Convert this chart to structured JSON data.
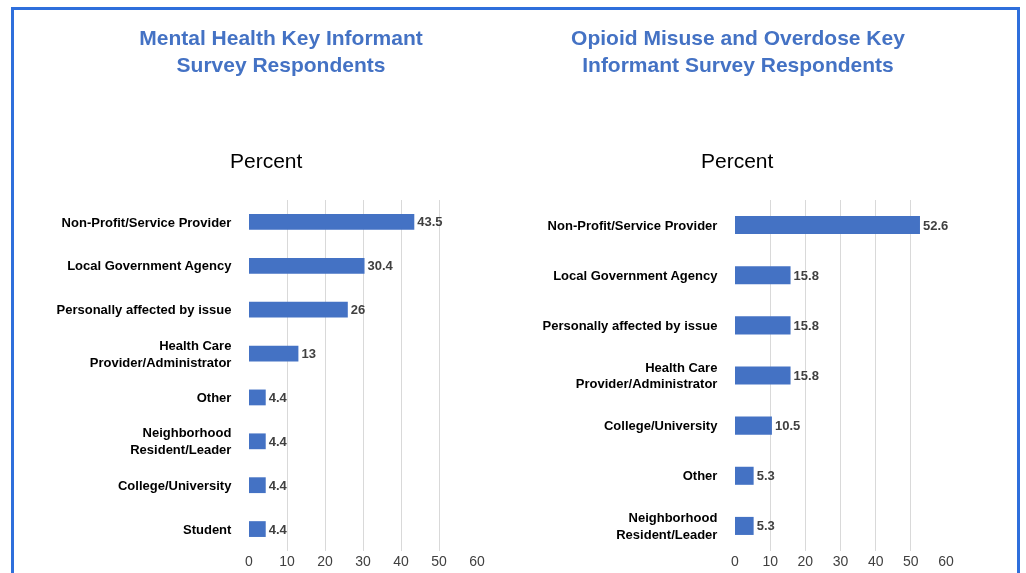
{
  "chart_data": [
    {
      "type": "bar",
      "orientation": "horizontal",
      "title": "Mental Health Key Informant Survey Respondents",
      "subtitle": "Percent",
      "categories": [
        "Non-Profit/Service Provider",
        "Local Government Agency",
        "Personally affected by issue",
        "Health Care Provider/Administrator",
        "Other",
        "Neighborhood Resident/Leader",
        "College/University",
        "Student"
      ],
      "values": [
        43.5,
        30.4,
        26,
        13,
        4.4,
        4.4,
        4.4,
        4.4
      ],
      "color": "#4472c4",
      "xlim": [
        0,
        60
      ],
      "xticks": [
        0,
        10,
        20,
        30,
        40,
        50,
        60
      ],
      "grid": "x",
      "data_labels": true
    },
    {
      "type": "bar",
      "orientation": "horizontal",
      "title": "Opioid Misuse and Overdose Key Informant Survey Respondents",
      "subtitle": "Percent",
      "categories": [
        "Non-Profit/Service Provider",
        "Local Government Agency",
        "Personally affected by issue",
        "Health Care Provider/Administrator",
        "College/University",
        "Other",
        "Neighborhood Resident/Leader"
      ],
      "values": [
        52.6,
        15.8,
        15.8,
        15.8,
        10.5,
        5.3,
        5.3
      ],
      "color": "#4472c4",
      "xlim": [
        0,
        60
      ],
      "xticks": [
        0,
        10,
        20,
        30,
        40,
        50,
        60
      ],
      "grid": "x",
      "data_labels": true
    }
  ]
}
